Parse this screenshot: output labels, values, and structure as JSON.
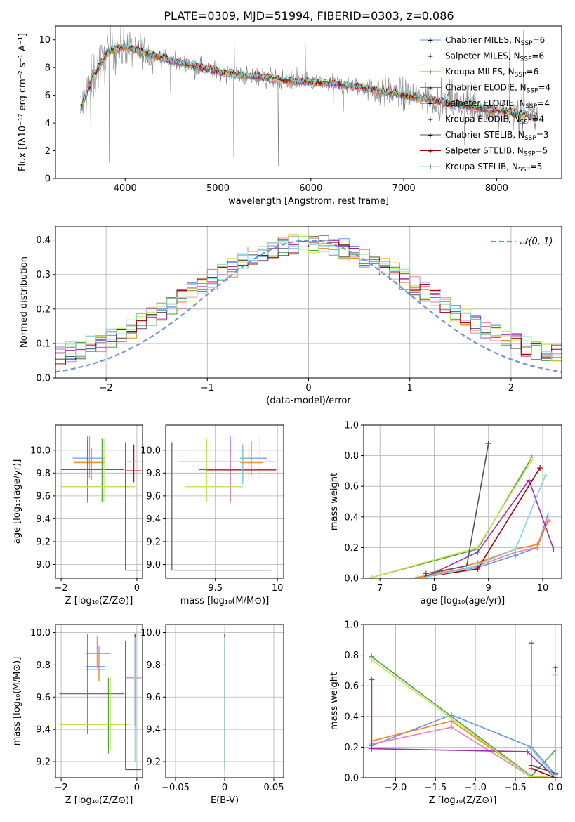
{
  "title": "PLATE=0309, MJD=51994, FIBERID=0303, z=0.086",
  "colors": {
    "Chabrier MILES": "#6495ed",
    "Salpeter MILES": "#e57fb4",
    "Kroupa MILES": "#e8891a",
    "Chabrier ELODIE": "#4e9e4e",
    "Salpeter ELODIE": "#9b30b0",
    "Kroupa ELODIE": "#c8e84a",
    "Chabrier STELIB": "#555555",
    "Salpeter STELIB": "#a00000",
    "Kroupa STELIB": "#7fd8dc",
    "data": "#808080",
    "normal_curve": "#6f95dc"
  },
  "chart_data": [
    {
      "id": "spectrum",
      "type": "line",
      "xlabel": "wavelength [Angstrom, rest frame]",
      "ylabel": "Flux [fλ10⁻¹⁷ erg cm⁻² s⁻¹ A⁻¹]",
      "xlim": [
        3250,
        8700
      ],
      "ylim": [
        0,
        11
      ],
      "xticks": [
        4000,
        5000,
        6000,
        7000,
        8000
      ],
      "yticks": [
        0,
        2,
        4,
        6,
        8,
        10
      ],
      "grid": false,
      "legend_position": "top-right",
      "legend": [
        {
          "name": "Chabrier MILES",
          "label": "Chabrier MILES, N",
          "sub": "SSP",
          "n": "=6"
        },
        {
          "name": "Salpeter MILES",
          "label": "Salpeter MILES, N",
          "sub": "SSP",
          "n": "=6"
        },
        {
          "name": "Kroupa MILES",
          "label": "Kroupa MILES, N",
          "sub": "SSP",
          "n": "=6"
        },
        {
          "name": "Chabrier ELODIE",
          "label": "Chabrier ELODIE, N",
          "sub": "SSP",
          "n": "=4"
        },
        {
          "name": "Salpeter ELODIE",
          "label": "Salpeter ELODIE, N",
          "sub": "SSP",
          "n": "=4"
        },
        {
          "name": "Kroupa ELODIE",
          "label": "Kroupa ELODIE, N",
          "sub": "SSP",
          "n": "=4"
        },
        {
          "name": "Chabrier STELIB",
          "label": "Chabrier STELIB, N",
          "sub": "SSP",
          "n": "=3"
        },
        {
          "name": "Salpeter STELIB",
          "label": "Salpeter STELIB, N",
          "sub": "SSP",
          "n": "=5"
        },
        {
          "name": "Kroupa STELIB",
          "label": "Kroupa STELIB, N",
          "sub": "SSP",
          "n": "=5"
        }
      ],
      "continuum_x": [
        3520,
        3650,
        3800,
        3900,
        4000,
        4100,
        4300,
        4500,
        4700,
        4900,
        5100,
        5300,
        5500,
        5700,
        5900,
        6100,
        6300,
        6500,
        6700,
        6900,
        7100,
        7300,
        7500,
        7700,
        7900,
        8100,
        8300,
        8440
      ],
      "continuum_y": [
        5.0,
        7.2,
        9.0,
        9.4,
        9.5,
        9.3,
        8.9,
        8.5,
        8.2,
        7.9,
        7.6,
        7.4,
        7.3,
        7.1,
        7.0,
        6.9,
        6.8,
        6.6,
        6.4,
        6.1,
        5.9,
        5.7,
        5.4,
        5.2,
        5.0,
        4.8,
        4.6,
        4.4
      ]
    },
    {
      "id": "residuals",
      "type": "histogram",
      "xlabel": "(data-model)/error",
      "ylabel": "Normed distribution",
      "xlim": [
        -2.5,
        2.5
      ],
      "ylim": [
        0,
        0.44
      ],
      "xticks": [
        -2,
        -1,
        0,
        1,
        2
      ],
      "yticks": [
        0.0,
        0.1,
        0.2,
        0.3,
        0.4
      ],
      "grid": true,
      "legend_position": "top-right",
      "normal_label": "𝒩(0, 1)",
      "bin_width": 0.1
    },
    {
      "id": "age_vs_Z",
      "type": "errorbar",
      "xlabel": "Z [log₁₀(Z/Z⊙)]",
      "ylabel": "age  [log₁₀(age/yr)]",
      "xlim": [
        -2.15,
        0.15
      ],
      "ylim": [
        8.88,
        10.22
      ],
      "xticks": [
        -2,
        0
      ],
      "yticks": [
        9.0,
        9.2,
        9.4,
        9.6,
        9.8,
        10.0
      ],
      "grid": true,
      "points": [
        {
          "s": "Chabrier MILES",
          "x": -1.3,
          "xlo": -1.7,
          "xhi": -0.85,
          "y": 9.93,
          "ylo": 9.78,
          "yhi": 10.08
        },
        {
          "s": "Salpeter MILES",
          "x": -1.25,
          "xlo": -1.65,
          "xhi": -0.85,
          "y": 9.9,
          "ylo": 9.76,
          "yhi": 10.12
        },
        {
          "s": "Kroupa MILES",
          "x": -1.2,
          "xlo": -1.65,
          "xhi": -0.85,
          "y": 9.89,
          "ylo": 9.74,
          "yhi": 10.02
        },
        {
          "s": "Chabrier ELODIE",
          "x": -0.92,
          "xlo": -2.0,
          "xhi": -0.05,
          "y": 9.68,
          "ylo": 9.55,
          "yhi": 10.1
        },
        {
          "s": "Salpeter ELODIE",
          "x": -1.3,
          "xlo": -2.0,
          "xhi": -0.35,
          "y": 9.83,
          "ylo": 9.54,
          "yhi": 10.12
        },
        {
          "s": "Kroupa ELODIE",
          "x": -0.87,
          "xlo": -2.0,
          "xhi": -0.05,
          "y": 9.68,
          "ylo": 9.55,
          "yhi": 10.1
        },
        {
          "s": "Chabrier STELIB",
          "x": -0.3,
          "xlo": -0.3,
          "xhi": 0.12,
          "y": 8.95,
          "ylo": 8.95,
          "yhi": 10.07
        },
        {
          "s": "Salpeter STELIB",
          "x": -0.08,
          "xlo": -0.3,
          "xhi": 0.12,
          "y": 9.82,
          "ylo": 9.72,
          "yhi": 10.05
        },
        {
          "s": "Kroupa STELIB",
          "x": -0.1,
          "xlo": -0.3,
          "xhi": 0.12,
          "y": 9.9,
          "ylo": 9.7,
          "yhi": 10.05
        }
      ]
    },
    {
      "id": "age_vs_mass",
      "type": "errorbar",
      "xlabel": "mass [log₁₀(M/M⊙)]",
      "ylabel": "",
      "xlim": [
        9.1,
        10.05
      ],
      "ylim": [
        8.88,
        10.22
      ],
      "xticks": [
        9.5,
        10.0
      ],
      "yticks": [
        9.0,
        9.2,
        9.4,
        9.6,
        9.8,
        10.0
      ],
      "grid": true,
      "points": [
        {
          "s": "Chabrier MILES",
          "x": 9.79,
          "xlo": 9.7,
          "xhi": 9.92,
          "y": 9.93,
          "ylo": 9.78,
          "yhi": 10.08
        },
        {
          "s": "Salpeter MILES",
          "x": 9.86,
          "xlo": 9.78,
          "xhi": 9.98,
          "y": 9.9,
          "ylo": 9.76,
          "yhi": 10.12
        },
        {
          "s": "Kroupa MILES",
          "x": 9.77,
          "xlo": 9.7,
          "xhi": 9.88,
          "y": 9.89,
          "ylo": 9.74,
          "yhi": 10.02
        },
        {
          "s": "Chabrier ELODIE",
          "x": 9.43,
          "xlo": 9.27,
          "xhi": 9.72,
          "y": 9.68,
          "ylo": 9.55,
          "yhi": 10.1
        },
        {
          "s": "Salpeter ELODIE",
          "x": 9.62,
          "xlo": 9.37,
          "xhi": 9.99,
          "y": 9.83,
          "ylo": 9.54,
          "yhi": 10.12
        },
        {
          "s": "Kroupa ELODIE",
          "x": 9.43,
          "xlo": 9.25,
          "xhi": 9.72,
          "y": 9.68,
          "ylo": 9.55,
          "yhi": 10.1
        },
        {
          "s": "Chabrier STELIB",
          "x": 9.15,
          "xlo": 9.15,
          "xhi": 9.95,
          "y": 8.95,
          "ylo": 8.95,
          "yhi": 10.07
        },
        {
          "s": "Salpeter STELIB",
          "x": 9.72,
          "xlo": 9.42,
          "xhi": 9.99,
          "y": 9.82,
          "ylo": 9.72,
          "yhi": 10.05
        },
        {
          "s": "Kroupa STELIB",
          "x": 9.72,
          "xlo": 9.2,
          "xhi": 9.97,
          "y": 9.9,
          "ylo": 9.7,
          "yhi": 10.05
        }
      ]
    },
    {
      "id": "weight_vs_age",
      "type": "line",
      "xlabel": "age  [log₁₀(age/yr)]",
      "ylabel": "mass weight",
      "xlim": [
        6.7,
        10.35
      ],
      "ylim": [
        0,
        1.0
      ],
      "xticks": [
        7,
        8,
        9,
        10
      ],
      "yticks": [
        0.0,
        0.2,
        0.4,
        0.6,
        0.8,
        1.0
      ],
      "grid": true,
      "series": [
        {
          "name": "Chabrier MILES",
          "x": [
            7.7,
            8.8,
            9.5,
            9.9,
            10.1
          ],
          "y": [
            0.005,
            0.07,
            0.15,
            0.2,
            0.42
          ]
        },
        {
          "name": "Salpeter MILES",
          "x": [
            7.7,
            8.8,
            9.5,
            9.9,
            10.1
          ],
          "y": [
            0.005,
            0.08,
            0.17,
            0.2,
            0.38
          ]
        },
        {
          "name": "Kroupa MILES",
          "x": [
            7.7,
            8.8,
            9.5,
            9.9,
            10.1
          ],
          "y": [
            0.005,
            0.1,
            0.19,
            0.22,
            0.37
          ]
        },
        {
          "name": "Chabrier ELODIE",
          "x": [
            6.85,
            8.8,
            9.8
          ],
          "y": [
            0.005,
            0.19,
            0.79
          ]
        },
        {
          "name": "Salpeter ELODIE",
          "x": [
            7.85,
            8.8,
            9.75,
            10.2
          ],
          "y": [
            0.01,
            0.17,
            0.64,
            0.19
          ]
        },
        {
          "name": "Kroupa ELODIE",
          "x": [
            6.85,
            8.8,
            9.8
          ],
          "y": [
            0.005,
            0.2,
            0.77
          ]
        },
        {
          "name": "Chabrier STELIB",
          "x": [
            7.85,
            8.6,
            9.0
          ],
          "y": [
            0.03,
            0.08,
            0.88
          ]
        },
        {
          "name": "Salpeter STELIB",
          "x": [
            7.85,
            8.8,
            9.95
          ],
          "y": [
            0.01,
            0.06,
            0.72
          ]
        },
        {
          "name": "Kroupa STELIB",
          "x": [
            7.8,
            8.6,
            9.5,
            10.05
          ],
          "y": [
            0.005,
            0.06,
            0.19,
            0.67
          ]
        }
      ]
    },
    {
      "id": "mass_vs_Z",
      "type": "errorbar",
      "xlabel": "Z [log₁₀(Z/Z⊙)]",
      "ylabel": "mass [log₁₀(M/M⊙)]",
      "xlim": [
        -2.15,
        0.15
      ],
      "ylim": [
        9.1,
        10.05
      ],
      "xticks": [
        -2,
        0
      ],
      "yticks": [
        9.2,
        9.4,
        9.6,
        9.8,
        10.0
      ],
      "grid": true,
      "points": [
        {
          "s": "Chabrier MILES",
          "x": -1.0,
          "xlo": -1.35,
          "xhi": -0.85,
          "y": 9.79,
          "ylo": 9.7,
          "yhi": 9.92
        },
        {
          "s": "Salpeter MILES",
          "x": -1.05,
          "xlo": -1.35,
          "xhi": -0.7,
          "y": 9.87,
          "ylo": 9.78,
          "yhi": 9.98
        },
        {
          "s": "Kroupa MILES",
          "x": -1.0,
          "xlo": -1.35,
          "xhi": -0.85,
          "y": 9.77,
          "ylo": 9.7,
          "yhi": 9.88
        },
        {
          "s": "Chabrier ELODIE",
          "x": -0.75,
          "xlo": -2.05,
          "xhi": -0.2,
          "y": 9.43,
          "ylo": 9.25,
          "yhi": 9.72
        },
        {
          "s": "Salpeter ELODIE",
          "x": -1.3,
          "xlo": -2.05,
          "xhi": -0.35,
          "y": 9.62,
          "ylo": 9.37,
          "yhi": 9.99
        },
        {
          "s": "Kroupa ELODIE",
          "x": -0.7,
          "xlo": -2.05,
          "xhi": -0.2,
          "y": 9.43,
          "ylo": 9.27,
          "yhi": 9.72
        },
        {
          "s": "Chabrier STELIB",
          "x": -0.3,
          "xlo": -0.3,
          "xhi": 0.12,
          "y": 9.15,
          "ylo": 9.15,
          "yhi": 9.95
        },
        {
          "s": "Salpeter STELIB",
          "x": -0.05,
          "xlo": -0.3,
          "xhi": 0.12,
          "y": 9.72,
          "ylo": 9.42,
          "yhi": 9.99
        },
        {
          "s": "Kroupa STELIB",
          "x": -0.05,
          "xlo": -0.3,
          "xhi": 0.12,
          "y": 9.72,
          "ylo": 9.2,
          "yhi": 9.97
        }
      ]
    },
    {
      "id": "mass_vs_ebv",
      "type": "errorbar",
      "xlabel": "E(B-V)",
      "ylabel": "",
      "xlim": [
        -0.06,
        0.06
      ],
      "ylim": [
        9.1,
        10.05
      ],
      "xticks": [
        -0.05,
        0.0,
        0.05
      ],
      "yticks": [
        9.2,
        9.4,
        9.6,
        9.8,
        10.0
      ],
      "grid": true,
      "points": [
        {
          "s": "Chabrier MILES",
          "x": 0.0,
          "xlo": 0.0,
          "xhi": 0.0,
          "y": 9.79,
          "ylo": 9.2,
          "yhi": 9.95
        },
        {
          "s": "Salpeter STELIB",
          "x": 0.0,
          "xlo": 0.0,
          "xhi": 0.0,
          "y": 9.75,
          "ylo": 9.15,
          "yhi": 9.99
        },
        {
          "s": "Kroupa STELIB",
          "x": 0.0,
          "xlo": 0.0,
          "xhi": 0.0,
          "y": 9.72,
          "ylo": 9.15,
          "yhi": 9.97
        }
      ]
    },
    {
      "id": "weight_vs_Z",
      "type": "line",
      "xlabel": "Z [log₁₀(Z/Z⊙)]",
      "ylabel": "mass weight",
      "xlim": [
        -2.4,
        0.08
      ],
      "ylim": [
        0,
        1.0
      ],
      "xticks": [
        -2.0,
        -1.5,
        -1.0,
        -0.5,
        0.0
      ],
      "xticklabels": [
        "−2.0",
        "−1.5",
        "−1.0",
        "−0.5",
        "0.0"
      ],
      "yticks": [
        0.0,
        0.2,
        0.4,
        0.6,
        0.8,
        1.0
      ],
      "grid": true,
      "series": [
        {
          "name": "Chabrier MILES",
          "x": [
            -2.3,
            -1.3,
            -0.3,
            0.0
          ],
          "y": [
            0.21,
            0.41,
            0.2,
            0.02
          ]
        },
        {
          "name": "Salpeter MILES",
          "x": [
            -2.3,
            -1.3,
            -0.3,
            0.0
          ],
          "y": [
            0.22,
            0.33,
            0.005,
            0.0
          ]
        },
        {
          "name": "Kroupa MILES",
          "x": [
            -2.3,
            -1.3,
            -0.3,
            0.0
          ],
          "y": [
            0.24,
            0.37,
            0.01,
            0.0
          ]
        },
        {
          "name": "Chabrier ELODIE",
          "x": [
            -2.3,
            -0.3,
            0.0
          ],
          "y": [
            0.79,
            0.01,
            0.18
          ]
        },
        {
          "name": "Salpeter ELODIE",
          "x": [
            -2.3,
            -2.3,
            -0.35,
            0.0
          ],
          "y": [
            0.64,
            0.19,
            0.17,
            0.0
          ]
        },
        {
          "name": "Kroupa ELODIE",
          "x": [
            -2.3,
            -0.3,
            0.0
          ],
          "y": [
            0.77,
            0.005,
            0.0
          ]
        },
        {
          "name": "Chabrier STELIB",
          "x": [
            -0.3,
            -0.3,
            0.0
          ],
          "y": [
            0.88,
            0.08,
            0.03
          ]
        },
        {
          "name": "Salpeter STELIB",
          "x": [
            -0.3,
            0.0,
            0.0
          ],
          "y": [
            0.06,
            0.0,
            0.72
          ]
        },
        {
          "name": "Kroupa STELIB",
          "x": [
            -0.3,
            0.0,
            0.0
          ],
          "y": [
            0.19,
            0.0,
            0.67
          ]
        }
      ]
    }
  ]
}
